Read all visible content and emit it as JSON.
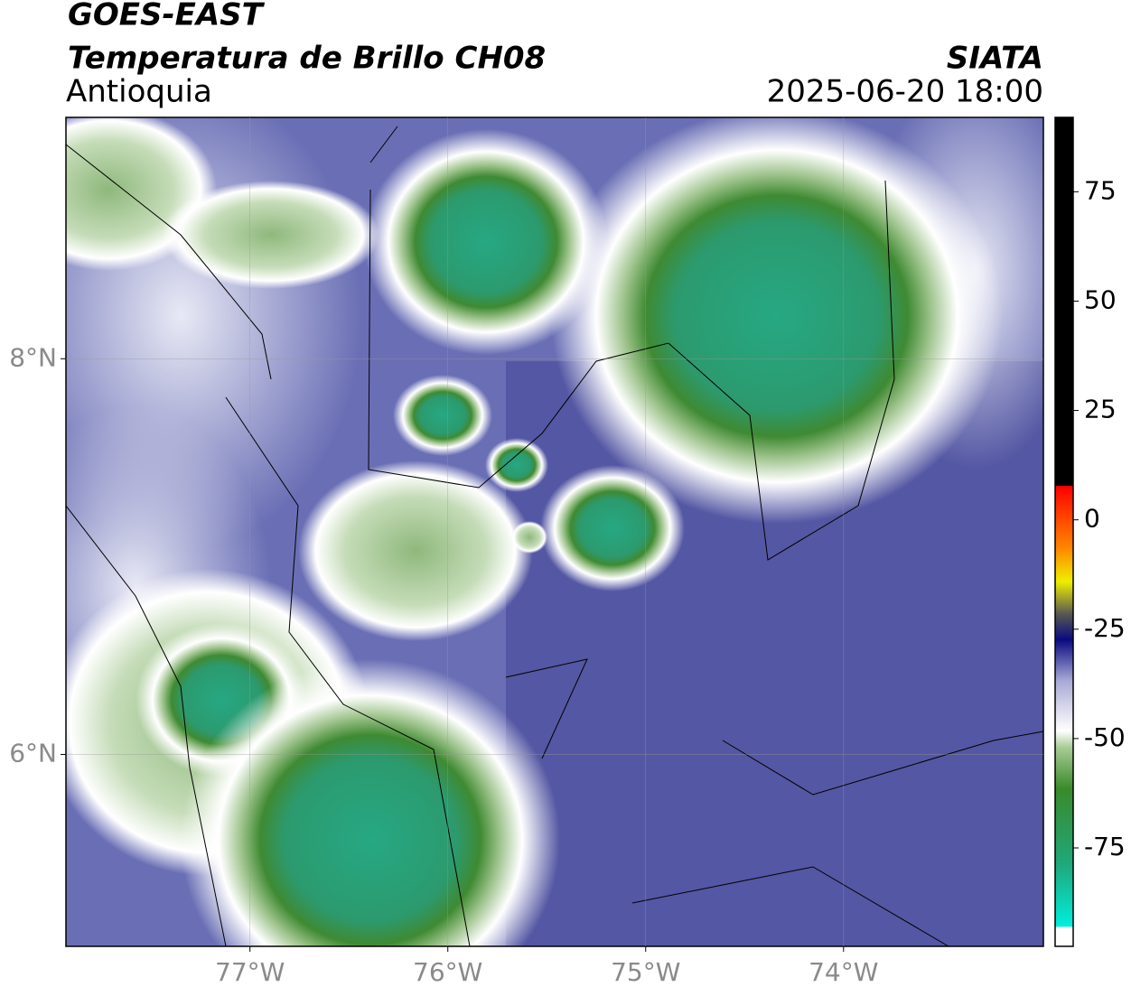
{
  "header": {
    "title": "GOES-EAST",
    "subtitle": "Temperatura de Brillo CH08",
    "region": "Antioquia",
    "source": "SIATA",
    "datetime": "2025-06-20 18:00"
  },
  "map": {
    "lon_lim": [
      -77.93,
      -72.99
    ],
    "lat_lim": [
      5.03,
      9.22
    ],
    "lon_ticks": [
      {
        "value": -77,
        "label": "77°W"
      },
      {
        "value": -76,
        "label": "76°W"
      },
      {
        "value": -75,
        "label": "75°W"
      },
      {
        "value": -74,
        "label": "74°W"
      }
    ],
    "lat_ticks": [
      {
        "value": 8,
        "label": "8°N"
      },
      {
        "value": 6,
        "label": "6°N"
      }
    ]
  },
  "colorbar": {
    "lim": [
      -97.5,
      92
    ],
    "ticks": [
      75,
      50,
      25,
      0,
      -25,
      -50,
      -75
    ]
  }
}
